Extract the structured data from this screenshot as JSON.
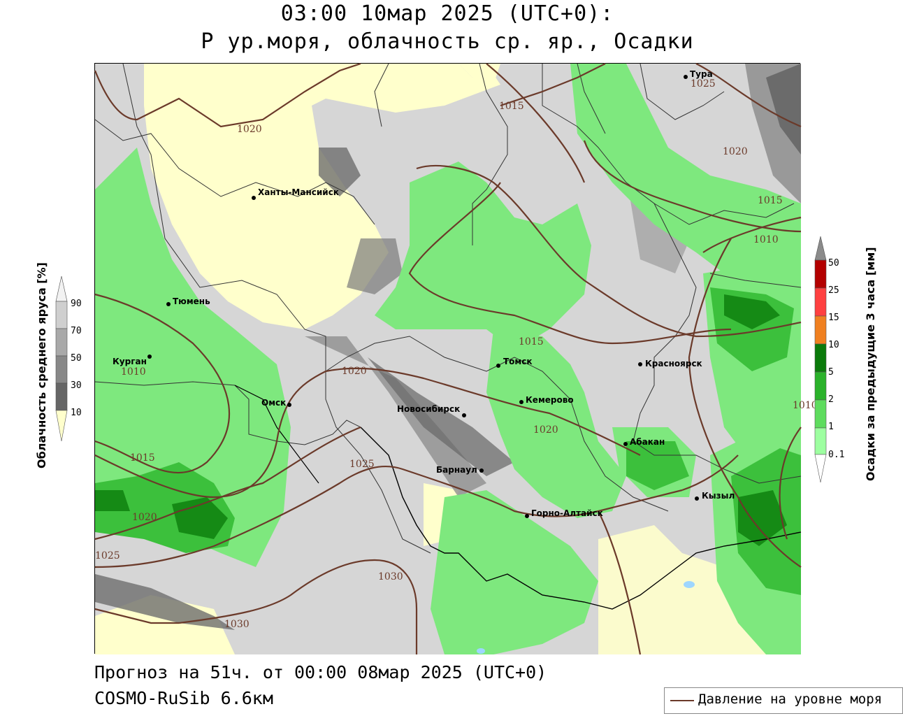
{
  "header": {
    "line1": "03:00 10мар 2025 (UTC+0):",
    "line2": "P ур.моря, облачность ср. яр., Осадки"
  },
  "footer": {
    "forecast": "Прогноз на 51ч. от 00:00 08мар 2025 (UTC+0)",
    "model": "COSMO-RuSib 6.6км"
  },
  "legend": {
    "pressure_label": "Давление на уровне моря"
  },
  "cloud_bar": {
    "title": "Облачность среднего яруса [%]",
    "ticks": [
      "90",
      "70",
      "50",
      "30",
      "10"
    ],
    "colors": [
      "#f2f2f2",
      "#cfcfcf",
      "#a9a9a9",
      "#888888",
      "#666666",
      "#ffffcc"
    ]
  },
  "precip_bar": {
    "title": "Осадки за предыдущие 3 часа [мм]",
    "ticks": [
      "50",
      "25",
      "15",
      "10",
      "5",
      "2",
      "1",
      "0.1"
    ],
    "colors": [
      "#8b8b8b",
      "#b30000",
      "#ff4040",
      "#f08020",
      "#0a7a0a",
      "#2ab22a",
      "#5edc5e",
      "#9dffa0"
    ]
  },
  "cities": [
    {
      "name": "Тура"
    },
    {
      "name": "Ханты-Мансийск"
    },
    {
      "name": "Тюмень"
    },
    {
      "name": "Курган"
    },
    {
      "name": "Омск"
    },
    {
      "name": "Новосибирск"
    },
    {
      "name": "Томск"
    },
    {
      "name": "Кемерово"
    },
    {
      "name": "Красноярск"
    },
    {
      "name": "Абакан"
    },
    {
      "name": "Барнаул"
    },
    {
      "name": "Горно-Алтайск"
    },
    {
      "name": "Кызыл"
    }
  ],
  "isobar_labels": [
    "1025",
    "1015",
    "1020",
    "1020",
    "1015",
    "1010",
    "1015",
    "1010",
    "1020",
    "1020",
    "1015",
    "1025",
    "1020",
    "1025",
    "1030",
    "1030",
    "1010"
  ],
  "colors": {
    "isobar": "#6b3a2a",
    "clear": "#ffffcc",
    "rain_light": "#7ee87e",
    "rain_mid": "#3cc03c",
    "rain_heavy": "#158a15"
  }
}
